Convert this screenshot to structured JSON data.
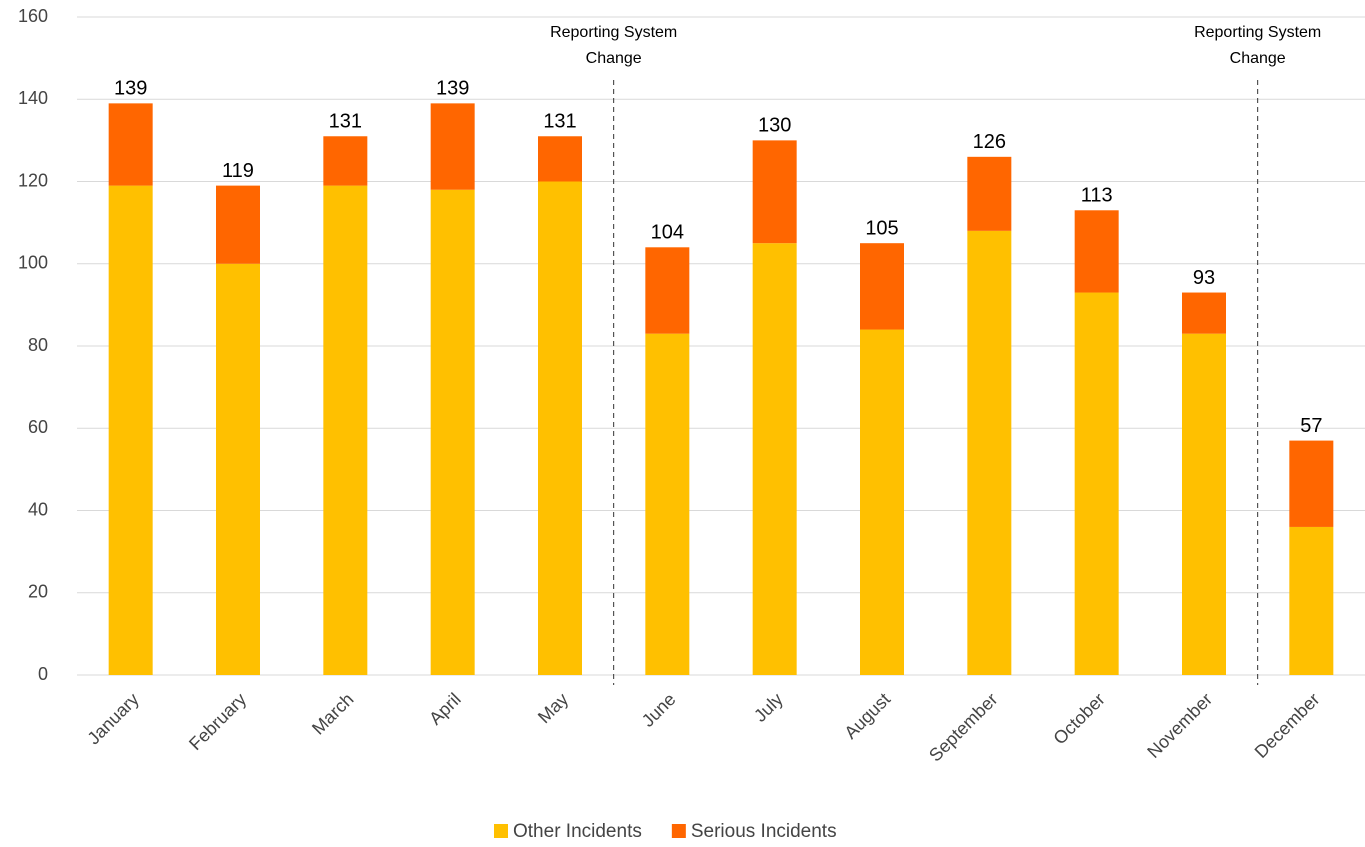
{
  "chart_data": {
    "type": "stacked_bar",
    "categories": [
      "January",
      "February",
      "March",
      "April",
      "May",
      "June",
      "July",
      "August",
      "September",
      "October",
      "November",
      "December"
    ],
    "series": [
      {
        "name": "Other Incidents",
        "color": "#ffc000",
        "values": [
          119,
          100,
          119,
          118,
          120,
          83,
          105,
          84,
          108,
          93,
          83,
          36
        ]
      },
      {
        "name": "Serious Incidents",
        "color": "#ff6600",
        "values": [
          20,
          19,
          12,
          21,
          11,
          21,
          25,
          21,
          18,
          20,
          10,
          21
        ]
      }
    ],
    "totals": [
      139,
      119,
      131,
      139,
      131,
      104,
      130,
      105,
      126,
      113,
      93,
      57
    ],
    "annotations": [
      {
        "lines": [
          "Reporting System",
          "Change"
        ],
        "between": [
          "May",
          "June"
        ]
      },
      {
        "lines": [
          "Reporting System",
          "Change"
        ],
        "between": [
          "November",
          "December"
        ]
      }
    ],
    "ylim": [
      0,
      160
    ],
    "yticks": [
      0,
      20,
      40,
      60,
      80,
      100,
      120,
      140,
      160
    ],
    "grid": true,
    "legend": "bottom"
  }
}
